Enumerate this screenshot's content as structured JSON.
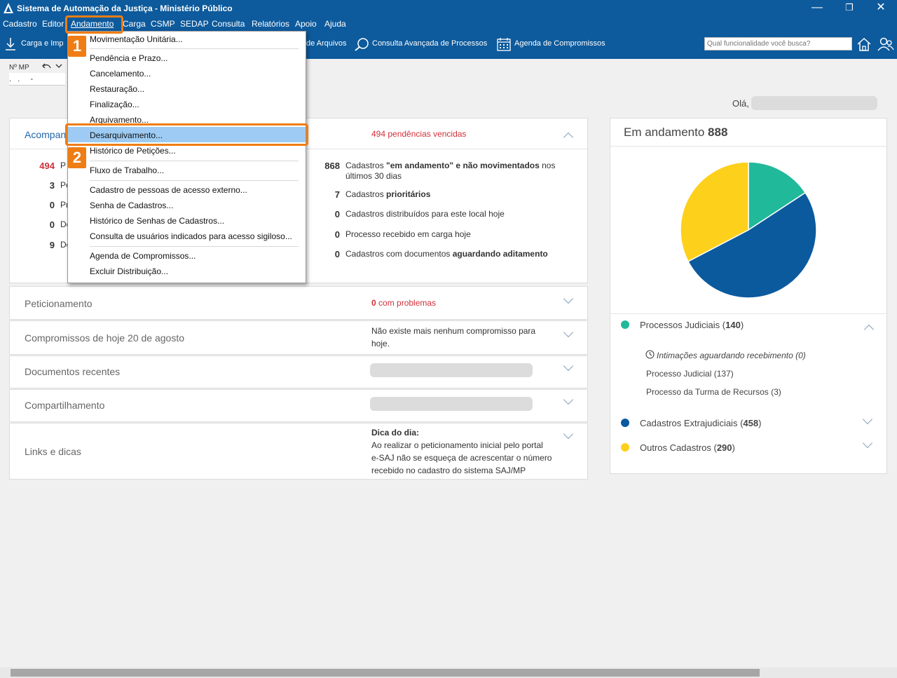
{
  "window": {
    "title": "Sistema de Automação da Justiça - Ministério Público",
    "minimize": "—",
    "restore": "❐",
    "close": "✕"
  },
  "menu": {
    "items": [
      "Cadastro",
      "Editor",
      "Andamento",
      "Carga",
      "CSMP",
      "SEDAP",
      "Consulta",
      "Relatórios",
      "Apoio",
      "Ajuda"
    ],
    "active": "Andamento"
  },
  "toolbar": {
    "carga": "Carga e Imp",
    "arquivos": "de Arquivos",
    "consulta_avancada": "Consulta Avançada de Processos",
    "agenda": "Agenda de Compromissos",
    "search_placeholder": "Qual funcionalidade você busca?"
  },
  "form": {
    "mp_label": "Nº MP",
    "mp_value": ".   .     -"
  },
  "greeting": "Olá,",
  "dropdown": {
    "items": [
      "Movimentação Unitária...",
      "Pendência e Prazo...",
      "Cancelamento...",
      "Restauração...",
      "Finalização...",
      "Arquivamento...",
      "Desarquivamento...",
      "Histórico de Petições...",
      "Fluxo de Trabalho...",
      "Cadastro de pessoas de acesso externo...",
      "Senha de Cadastros...",
      "Histórico de Senhas de Cadastros...",
      "Consulta de usuários indicados para acesso sigiloso...",
      "Agenda de Compromissos...",
      "Excluir Distribuição..."
    ],
    "highlighted": "Desarquivamento..."
  },
  "callouts": {
    "one": "1",
    "two": "2"
  },
  "acompanhamento": {
    "title": "Acompan",
    "pendencias": "494 pendências vencidas",
    "left_stats": [
      {
        "value": "494",
        "label": "P"
      },
      {
        "value": "3",
        "label": "Pe"
      },
      {
        "value": "0",
        "label": "Pr"
      },
      {
        "value": "0",
        "label": "Do"
      },
      {
        "value": "9",
        "label": "Do"
      }
    ],
    "right_stats": [
      {
        "value": "868",
        "pre": "Cadastros ",
        "bold": "\"em andamento\" e não movimentados",
        "post": " nos",
        "line2": "últimos 30 dias"
      },
      {
        "value": "7",
        "pre": "Cadastros ",
        "bold": "prioritários",
        "post": ""
      },
      {
        "value": "0",
        "pre": "Cadastros distribuídos para este local hoje",
        "bold": "",
        "post": ""
      },
      {
        "value": "0",
        "pre": "Processo recebido em carga hoje",
        "bold": "",
        "post": ""
      },
      {
        "value": "0",
        "pre": "Cadastros com documentos ",
        "bold": "aguardando aditamento",
        "post": ""
      }
    ]
  },
  "sections": {
    "peticionamento": {
      "title": "Peticionamento",
      "count": "0",
      "note": " com problemas"
    },
    "compromissos": {
      "title": "Compromissos de hoje 20 de agosto",
      "line1": "Não existe mais nenhum compromisso para",
      "line2": "hoje."
    },
    "documentos": {
      "title": "Documentos recentes"
    },
    "compartilhamento": {
      "title": "Compartilhamento"
    },
    "links": {
      "title": "Links e dicas",
      "tip_title": "Dica do dia:",
      "tip_lines": [
        "Ao realizar o peticionamento inicial pelo portal",
        "e-SAJ não se esqueça de acrescentar o número",
        "recebido no cadastro do sistema SAJ/MP"
      ]
    }
  },
  "em_andamento": {
    "label": "Em andamento",
    "total": "888",
    "legend": [
      {
        "name": "Processos Judiciais",
        "count": "140",
        "color": "#20b99a"
      },
      {
        "name": "Cadastros Extrajudiciais",
        "count": "458",
        "color": "#0b5a9e"
      },
      {
        "name": "Outros Cadastros",
        "count": "290",
        "color": "#fdd01b"
      }
    ],
    "judicial_items": [
      "Intimações aguardando recebimento (0)",
      "Processo Judicial (137)",
      "Processo da Turma de Recursos (3)"
    ]
  },
  "chart_data": {
    "type": "pie",
    "categories": [
      "Processos Judiciais",
      "Cadastros Extrajudiciais",
      "Outros Cadastros"
    ],
    "values": [
      140,
      458,
      290
    ],
    "colors": [
      "#20b99a",
      "#0b5a9e",
      "#fdd01b"
    ],
    "title": "",
    "legend": "below"
  }
}
